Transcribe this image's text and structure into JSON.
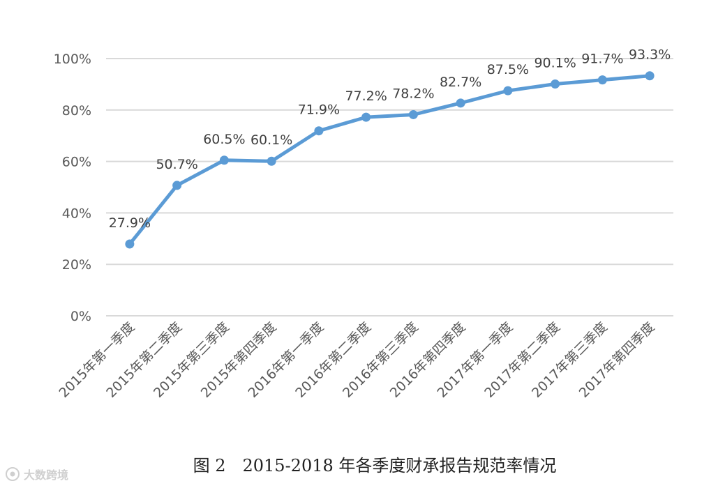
{
  "chart_data": {
    "type": "line",
    "title": "图 2　2015-2018 年各季度财承报告规范率情况",
    "categories": [
      "2015年第一季度",
      "2015年第二季度",
      "2015年第三季度",
      "2015年第四季度",
      "2016年第一季度",
      "2016年第二季度",
      "2016年第三季度",
      "2016年第四季度",
      "2017年第一季度",
      "2017年第二季度",
      "2017年第三季度",
      "2017年第四季度"
    ],
    "values": [
      27.9,
      50.7,
      60.5,
      60.1,
      71.9,
      77.2,
      78.2,
      82.7,
      87.5,
      90.1,
      91.7,
      93.3
    ],
    "data_labels": [
      "27.9%",
      "50.7%",
      "60.5%",
      "60.1%",
      "71.9%",
      "77.2%",
      "78.2%",
      "82.7%",
      "87.5%",
      "90.1%",
      "91.7%",
      "93.3%"
    ],
    "ylim": [
      0,
      100
    ],
    "yticks": [
      0,
      20,
      40,
      60,
      80,
      100
    ],
    "ytick_labels": [
      "0%",
      "20%",
      "40%",
      "60%",
      "80%",
      "100%"
    ],
    "grid": true,
    "line_color": "#5b9bd5",
    "grid_color": "#d9d9d9",
    "legend": "none"
  },
  "watermark": {
    "text": "大数跨境",
    "icon": "brand-logo-icon"
  }
}
